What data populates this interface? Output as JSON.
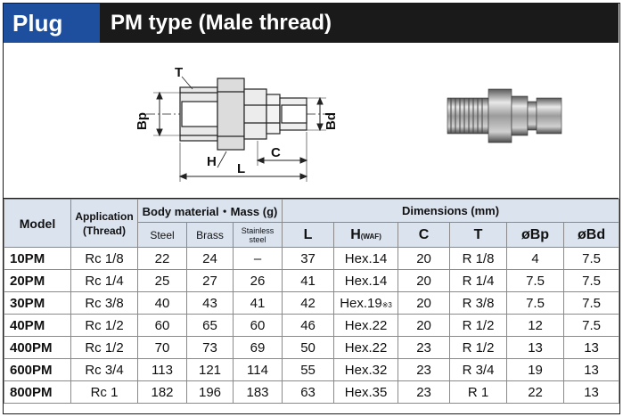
{
  "header": {
    "plug_label": "Plug",
    "title": "PM type (Male thread)"
  },
  "diagram": {
    "labels": {
      "T": "T",
      "Bp": "Bp",
      "Bd": "Bd",
      "H": "H",
      "L": "L",
      "C": "C"
    }
  },
  "table": {
    "head": {
      "model": "Model",
      "application": "Application",
      "thread": "(Thread)",
      "body_material": "Body material・Mass (g)",
      "steel": "Steel",
      "brass": "Brass",
      "stainless_1": "Stainless",
      "stainless_2": "steel",
      "dimensions": "Dimensions (mm)",
      "L": "L",
      "H": "H",
      "H_waf": "(WAF)",
      "C": "C",
      "T": "T",
      "Bp": "øBp",
      "Bd": "øBd"
    },
    "rows": [
      {
        "model": "10PM",
        "thread": "Rc 1/8",
        "steel": "22",
        "brass": "24",
        "stainless": "–",
        "L": "37",
        "H": "Hex.14",
        "H_note": "",
        "C": "20",
        "T": "R 1/8",
        "Bp": "4",
        "Bd": "7.5"
      },
      {
        "model": "20PM",
        "thread": "Rc 1/4",
        "steel": "25",
        "brass": "27",
        "stainless": "26",
        "L": "41",
        "H": "Hex.14",
        "H_note": "",
        "C": "20",
        "T": "R 1/4",
        "Bp": "7.5",
        "Bd": "7.5"
      },
      {
        "model": "30PM",
        "thread": "Rc 3/8",
        "steel": "40",
        "brass": "43",
        "stainless": "41",
        "L": "42",
        "H": "Hex.19",
        "H_note": "※3",
        "C": "20",
        "T": "R 3/8",
        "Bp": "7.5",
        "Bd": "7.5"
      },
      {
        "model": "40PM",
        "thread": "Rc 1/2",
        "steel": "60",
        "brass": "65",
        "stainless": "60",
        "L": "46",
        "H": "Hex.22",
        "H_note": "",
        "C": "20",
        "T": "R 1/2",
        "Bp": "12",
        "Bd": "7.5"
      },
      {
        "model": "400PM",
        "thread": "Rc 1/2",
        "steel": "70",
        "brass": "73",
        "stainless": "69",
        "L": "50",
        "H": "Hex.22",
        "H_note": "",
        "C": "23",
        "T": "R 1/2",
        "Bp": "13",
        "Bd": "13"
      },
      {
        "model": "600PM",
        "thread": "Rc 3/4",
        "steel": "113",
        "brass": "121",
        "stainless": "114",
        "L": "55",
        "H": "Hex.32",
        "H_note": "",
        "C": "23",
        "T": "R 3/4",
        "Bp": "19",
        "Bd": "13"
      },
      {
        "model": "800PM",
        "thread": "Rc 1",
        "steel": "182",
        "brass": "196",
        "stainless": "183",
        "L": "63",
        "H": "Hex.35",
        "H_note": "",
        "C": "23",
        "T": "R 1",
        "Bp": "22",
        "Bd": "13"
      }
    ]
  }
}
